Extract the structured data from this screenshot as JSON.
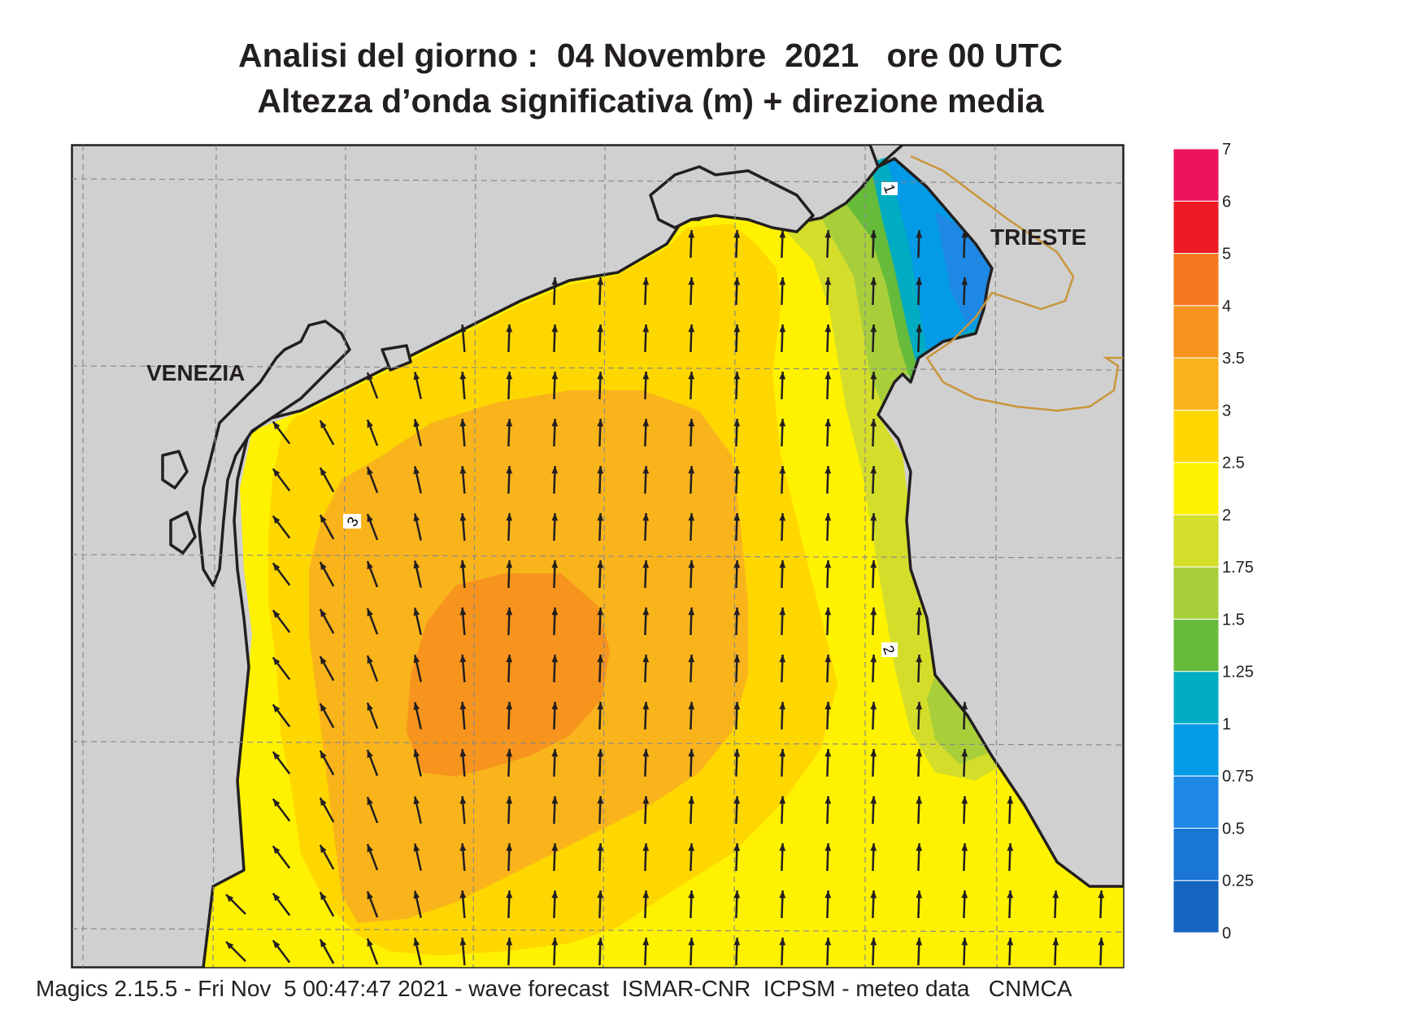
{
  "title": {
    "line1": "Analisi del giorno :  04 Novembre  2021   ore 00 UTC",
    "line2": "Altezza d’onda significativa (m) + direzione media"
  },
  "cities": {
    "venezia": "VENEZIA",
    "trieste": "TRIESTE"
  },
  "contour_labels": {
    "c1": "1",
    "c2": "2",
    "c3": "3"
  },
  "legend": {
    "ticks": [
      "0",
      "0.25",
      "0.5",
      "0.75",
      "1",
      "1.25",
      "1.5",
      "1.75",
      "2",
      "2.5",
      "3",
      "3.5",
      "4",
      "5",
      "6",
      "7"
    ],
    "colors": [
      "#1565c0",
      "#1976d2",
      "#1e88e5",
      "#039be5",
      "#00acc1",
      "#66bb3a",
      "#a8cf3a",
      "#d4de2a",
      "#fff200",
      "#ffd700",
      "#f9b41c",
      "#f7941d",
      "#f47920",
      "#ed1c24",
      "#ed145b"
    ]
  },
  "colors": {
    "land": "#d0d0d0",
    "coast": "#231f20",
    "border": "#c8963c"
  },
  "footer": "Magics 2.15.5 - Fri Nov  5 00:47:47 2021 - wave forecast  ISMAR-CNR  ICPSM - meteo data   CNMCA"
}
